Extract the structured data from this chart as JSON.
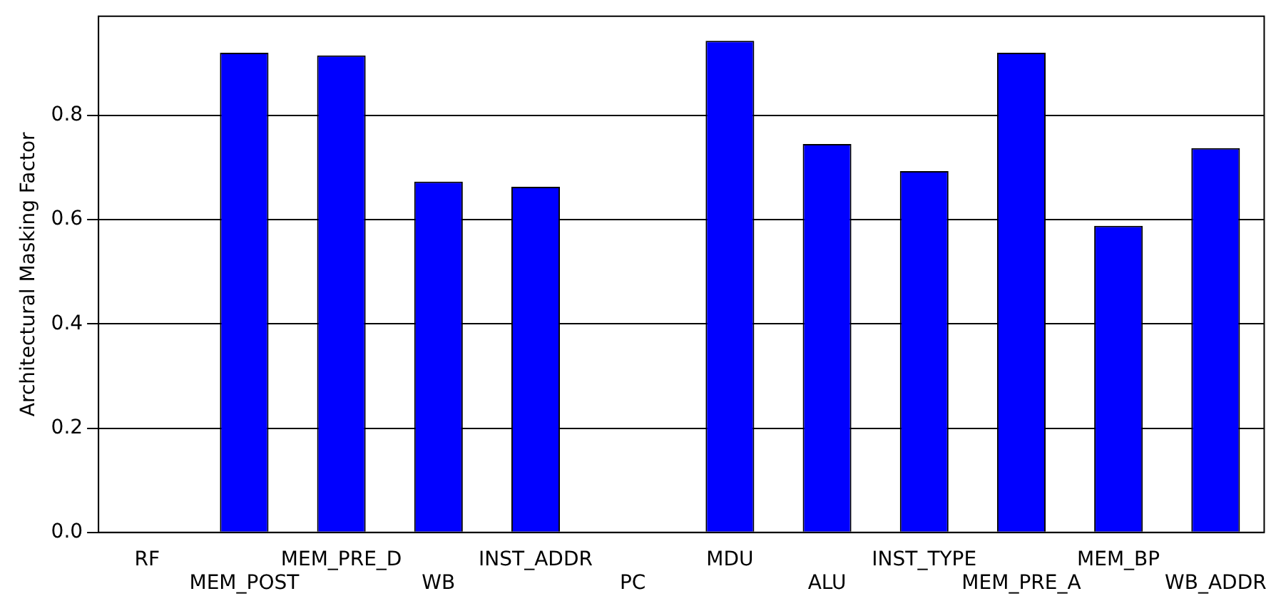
{
  "chart_data": {
    "type": "bar",
    "ylabel": "Architectural Masking Factor",
    "categories": [
      "RF",
      "MEM_POST",
      "MEM_PRE_D",
      "WB",
      "INST_ADDR",
      "PC",
      "MDU",
      "ALU",
      "INST_TYPE",
      "MEM_PRE_A",
      "MEM_BP",
      "WB_ADDR"
    ],
    "values": [
      0,
      0.92,
      0.915,
      0.673,
      0.663,
      0,
      0.943,
      0.745,
      0.693,
      0.92,
      0.588,
      0.737
    ],
    "color": "#0000ff",
    "ylim": [
      0,
      0.99
    ],
    "yticks": [
      {
        "value": 0,
        "label": "0.0"
      },
      {
        "value": 0.2,
        "label": "0.2"
      },
      {
        "value": 0.4,
        "label": "0.4"
      },
      {
        "value": 0.6,
        "label": "0.6"
      },
      {
        "value": 0.8,
        "label": "0.8"
      }
    ],
    "grid": "y",
    "legend": false
  }
}
